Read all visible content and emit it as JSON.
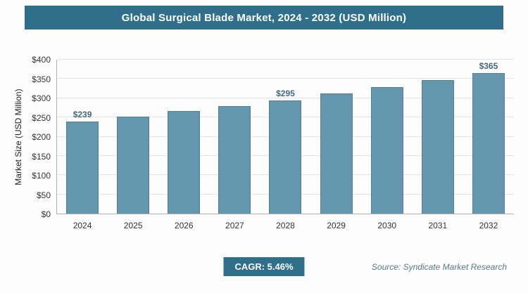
{
  "header": {
    "title": "Global Surgical Blade Market, 2024 - 2032 (USD Million)"
  },
  "chart_data": {
    "type": "bar",
    "title": "Global Surgical Blade Market, 2024 - 2032 (USD Million)",
    "categories": [
      "2024",
      "2025",
      "2026",
      "2027",
      "2028",
      "2029",
      "2030",
      "2031",
      "2032"
    ],
    "values": [
      239,
      252,
      266,
      280,
      295,
      312,
      329,
      347,
      365
    ],
    "data_labels": [
      "$239",
      null,
      null,
      null,
      "$295",
      null,
      null,
      null,
      "$365"
    ],
    "xlabel": "",
    "ylabel": "Market Size (USD Million)",
    "ylim": [
      0,
      400
    ],
    "tick_values": [
      0,
      50,
      100,
      150,
      200,
      250,
      300,
      350,
      400
    ],
    "y_tick_labels": [
      "$0",
      "$50",
      "$100",
      "$150",
      "$200",
      "$250",
      "$300",
      "$350",
      "$400"
    ],
    "grid": true,
    "legend": false,
    "bar_color": "#6496ae",
    "bar_border_color": "#537f96",
    "accent_color": "#306f8c"
  },
  "footer": {
    "cagr_label": "CAGR: 5.46%",
    "source": "Source: Syndicate Market Research"
  }
}
